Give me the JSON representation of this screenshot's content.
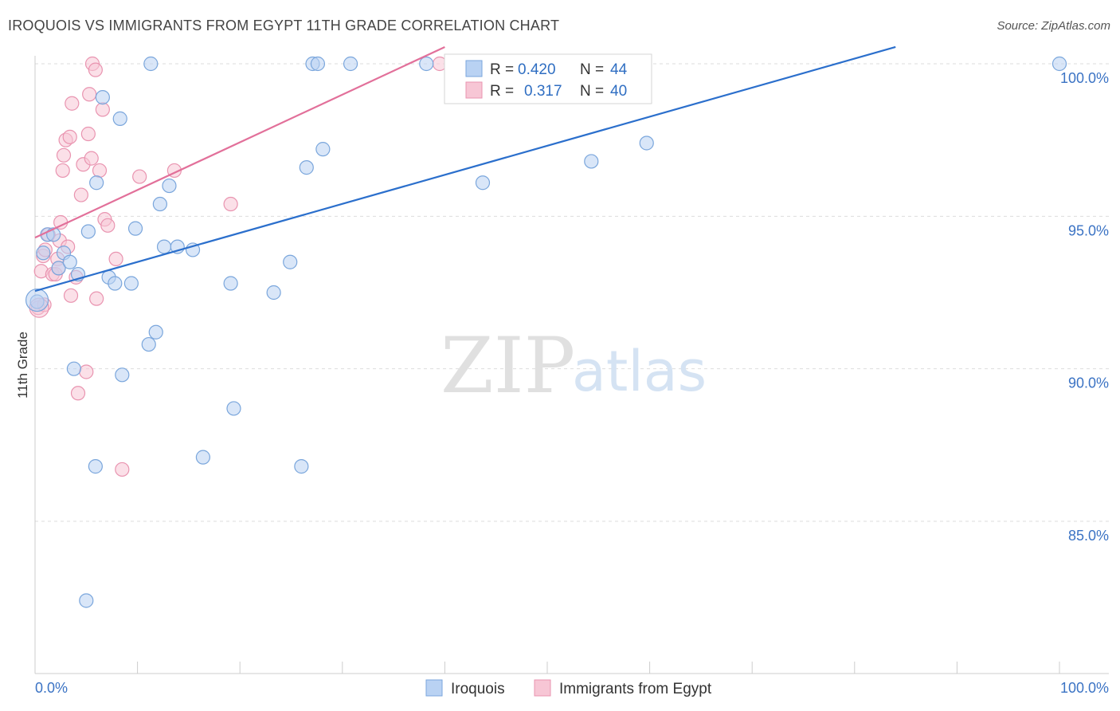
{
  "header": {
    "title": "IROQUOIS VS IMMIGRANTS FROM EGYPT 11TH GRADE CORRELATION CHART",
    "source": "Source: ZipAtlas.com"
  },
  "watermark": {
    "zip": "ZIP",
    "atlas": "atlas"
  },
  "colors": {
    "blue_fill": "#b9d2f3",
    "blue_stroke": "#7aa6dc",
    "blue_line": "#2b6fcc",
    "pink_fill": "#f7c6d5",
    "pink_stroke": "#e994b0",
    "pink_line": "#e2709a",
    "grid": "#dddddd",
    "tick_text": "#3b73c4"
  },
  "legend": {
    "rows": [
      {
        "r_label": "R =",
        "r_value": "0.420",
        "n_label": "N =",
        "n_value": "44"
      },
      {
        "r_label": "R =",
        "r_value": "0.317",
        "n_label": "N =",
        "n_value": "40"
      }
    ]
  },
  "chart_data": {
    "type": "scatter",
    "title": "IROQUOIS VS IMMIGRANTS FROM EGYPT 11TH GRADE CORRELATION CHART",
    "xlabel": "",
    "ylabel": "11th Grade",
    "xlim": [
      0,
      100
    ],
    "ylim": [
      80.5,
      100.7
    ],
    "x_tick_labels": [
      "0.0%",
      "100.0%"
    ],
    "y_ticks": [
      85,
      90,
      95,
      100
    ],
    "y_tick_labels": [
      "85.0%",
      "90.0%",
      "95.0%",
      "100.0%"
    ],
    "grid": true,
    "legend_position": "bottom",
    "series": [
      {
        "name": "Iroquois",
        "r": 0.42,
        "n": 44,
        "trend": {
          "x": [
            0,
            84
          ],
          "y": [
            92.55,
            100.55
          ]
        },
        "points": [
          [
            0.2,
            92.2
          ],
          [
            0.8,
            93.8
          ],
          [
            1.2,
            94.4
          ],
          [
            1.8,
            94.4
          ],
          [
            2.3,
            93.3
          ],
          [
            2.8,
            93.8
          ],
          [
            3.4,
            93.5
          ],
          [
            4.2,
            93.1
          ],
          [
            3.8,
            90.0
          ],
          [
            5.2,
            94.5
          ],
          [
            6.0,
            96.1
          ],
          [
            5.9,
            86.8
          ],
          [
            6.6,
            98.9
          ],
          [
            7.2,
            93.0
          ],
          [
            7.8,
            92.8
          ],
          [
            8.3,
            98.2
          ],
          [
            8.5,
            89.8
          ],
          [
            9.4,
            92.8
          ],
          [
            9.8,
            94.6
          ],
          [
            11.3,
            100.0
          ],
          [
            11.1,
            90.8
          ],
          [
            11.8,
            91.2
          ],
          [
            12.2,
            95.4
          ],
          [
            12.6,
            94.0
          ],
          [
            13.1,
            96.0
          ],
          [
            13.9,
            94.0
          ],
          [
            15.4,
            93.9
          ],
          [
            16.4,
            87.1
          ],
          [
            19.1,
            92.8
          ],
          [
            19.4,
            88.7
          ],
          [
            23.3,
            92.5
          ],
          [
            24.9,
            93.5
          ],
          [
            26.0,
            86.8
          ],
          [
            26.5,
            96.6
          ],
          [
            27.1,
            100.0
          ],
          [
            27.6,
            100.0
          ],
          [
            28.1,
            97.2
          ],
          [
            30.8,
            100.0
          ],
          [
            38.2,
            100.0
          ],
          [
            43.7,
            96.1
          ],
          [
            54.3,
            96.8
          ],
          [
            59.7,
            97.4
          ],
          [
            100.0,
            100.0
          ],
          [
            5.0,
            82.4
          ]
        ]
      },
      {
        "name": "Immigrants from Egypt",
        "r": 0.317,
        "n": 40,
        "trend": {
          "x": [
            0,
            40
          ],
          "y": [
            94.3,
            100.55
          ]
        },
        "points": [
          [
            0.3,
            92.0
          ],
          [
            0.6,
            93.2
          ],
          [
            0.8,
            93.7
          ],
          [
            1.0,
            93.9
          ],
          [
            1.3,
            94.4
          ],
          [
            1.7,
            93.1
          ],
          [
            2.0,
            93.1
          ],
          [
            2.2,
            93.6
          ],
          [
            2.3,
            93.3
          ],
          [
            2.4,
            94.2
          ],
          [
            2.5,
            94.8
          ],
          [
            2.7,
            96.5
          ],
          [
            2.8,
            97.0
          ],
          [
            3.0,
            97.5
          ],
          [
            3.2,
            94.0
          ],
          [
            3.4,
            97.6
          ],
          [
            3.5,
            92.4
          ],
          [
            3.6,
            98.7
          ],
          [
            4.0,
            93.0
          ],
          [
            4.2,
            89.2
          ],
          [
            4.5,
            95.7
          ],
          [
            4.7,
            96.7
          ],
          [
            5.0,
            89.9
          ],
          [
            5.2,
            97.7
          ],
          [
            5.3,
            99.0
          ],
          [
            5.5,
            96.9
          ],
          [
            5.6,
            100.0
          ],
          [
            5.9,
            99.8
          ],
          [
            6.0,
            92.3
          ],
          [
            6.3,
            96.5
          ],
          [
            6.6,
            98.5
          ],
          [
            6.8,
            94.9
          ],
          [
            7.1,
            94.7
          ],
          [
            7.9,
            93.6
          ],
          [
            8.5,
            86.7
          ],
          [
            10.2,
            96.3
          ],
          [
            13.6,
            96.5
          ],
          [
            19.1,
            95.4
          ],
          [
            39.5,
            100.0
          ],
          [
            0.9,
            92.1
          ]
        ]
      }
    ]
  }
}
